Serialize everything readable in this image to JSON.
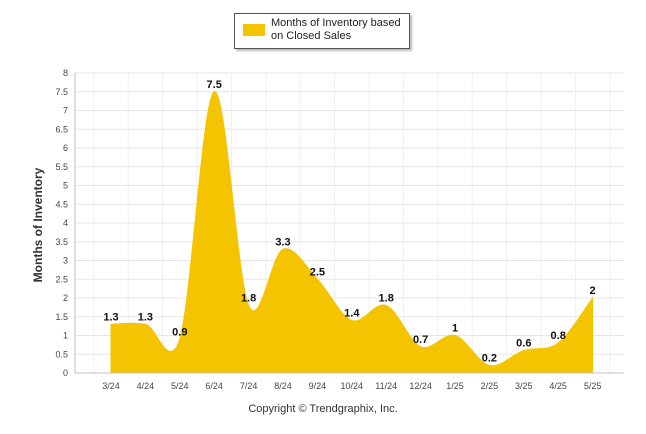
{
  "chart_data": {
    "type": "area",
    "categories": [
      "3/24",
      "4/24",
      "5/24",
      "6/24",
      "7/24",
      "8/24",
      "9/24",
      "10/24",
      "11/24",
      "12/24",
      "1/25",
      "2/25",
      "3/25",
      "4/25",
      "5/25"
    ],
    "series": [
      {
        "name": "Months of Inventory based on Closed Sales",
        "values": [
          1.3,
          1.3,
          0.9,
          7.5,
          1.8,
          3.3,
          2.5,
          1.4,
          1.8,
          0.7,
          1,
          0.2,
          0.6,
          0.8,
          2
        ]
      }
    ],
    "value_labels": [
      "1.3",
      "1.3",
      "0.9",
      "7.5",
      "1.8",
      "3.3",
      "2.5",
      "1.4",
      "1.8",
      "0.7",
      "1",
      "0.2",
      "0.6",
      "0.8",
      "2"
    ],
    "yticks": [
      "0",
      "0.5",
      "1",
      "1.5",
      "2",
      "2.5",
      "3",
      "3.5",
      "4",
      "4.5",
      "5",
      "5.5",
      "6",
      "6.5",
      "7",
      "7.5",
      "8"
    ],
    "ylabel": "Months of Inventory",
    "xlabel": "",
    "ylim": [
      0,
      8
    ],
    "grid": true,
    "legend_position": "top-center",
    "color": "#f5c400"
  },
  "legend": {
    "label": "Months of Inventory based on Closed Sales"
  },
  "footer": {
    "copyright": "Copyright © Trendgraphix, Inc."
  }
}
